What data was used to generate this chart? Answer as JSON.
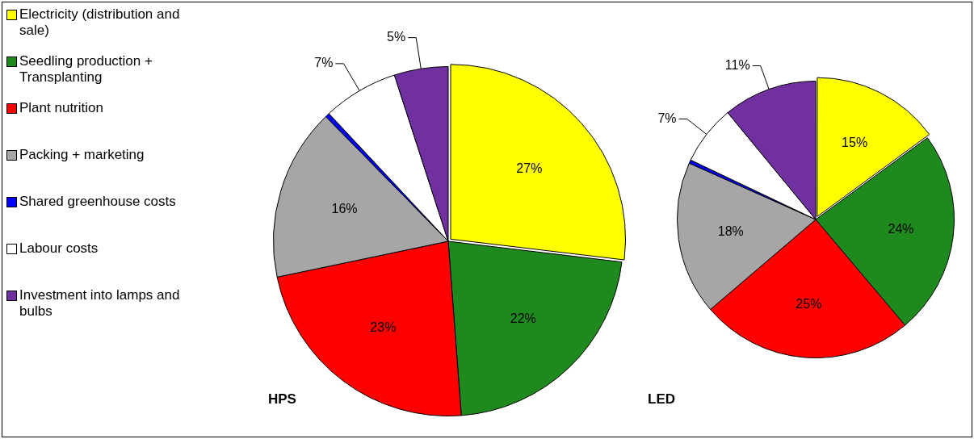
{
  "chart_data": [
    {
      "type": "pie",
      "title": "HPS",
      "legend": "left",
      "categories": [
        "Electricity (distribution and sale)",
        "Seedling production + Transplanting",
        "Plant nutrition",
        "Packing + marketing",
        "Shared greenhouse costs",
        "Labour costs",
        "Investment into lamps and bulbs"
      ],
      "values": [
        27,
        22,
        23,
        16,
        0.4,
        7,
        5
      ],
      "value_labels": [
        "27%",
        "22%",
        "23%",
        "16%",
        null,
        "7%",
        "5%"
      ],
      "colors": [
        "#ffff00",
        "#1e8a1e",
        "#ff0000",
        "#a6a6a6",
        "#0000ff",
        "#ffffff",
        "#7030a0"
      ]
    },
    {
      "type": "pie",
      "title": "LED",
      "categories": [
        null,
        null,
        null,
        null,
        null,
        null,
        null
      ],
      "values": [
        15,
        24,
        25,
        18,
        0.4,
        7,
        11
      ],
      "value_labels": [
        "15%",
        "24%",
        "25%",
        "18%",
        null,
        "7%",
        "11%"
      ],
      "colors": [
        "#ffff00",
        "#1e8a1e",
        "#ff0000",
        "#a6a6a6",
        "#0000ff",
        "#ffffff",
        "#7030a0"
      ]
    }
  ]
}
